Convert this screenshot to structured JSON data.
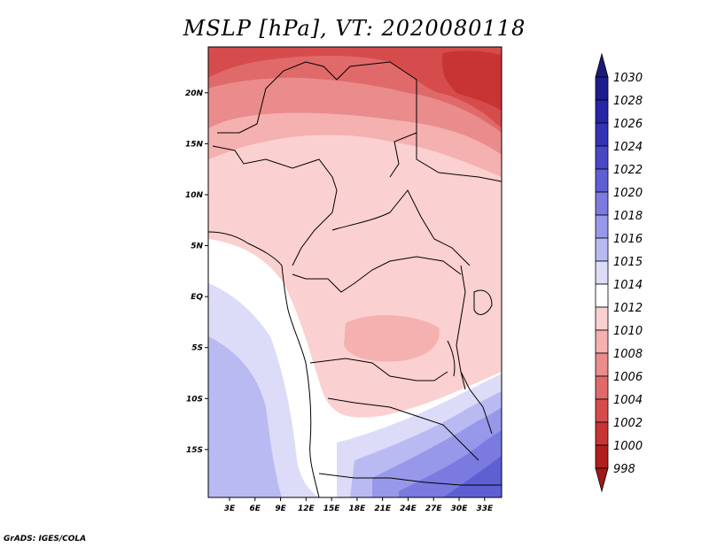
{
  "title": "MSLP [hPa], VT: 2020080118",
  "credit": "GrADS: IGES/COLA",
  "map": {
    "lat_labels": [
      "20N",
      "15N",
      "10N",
      "5N",
      "EQ",
      "5S",
      "10S",
      "15S"
    ],
    "lat_values": [
      20,
      15,
      10,
      5,
      0,
      -5,
      -10,
      -15
    ],
    "lon_labels": [
      "3E",
      "6E",
      "9E",
      "12E",
      "15E",
      "18E",
      "21E",
      "24E",
      "27E",
      "30E",
      "33E"
    ],
    "lon_values": [
      3,
      6,
      9,
      12,
      15,
      18,
      21,
      24,
      27,
      30,
      33
    ],
    "lon_range": [
      0.5,
      35
    ],
    "lat_range": [
      -19.7,
      24.5
    ]
  },
  "colorbar": {
    "labels": [
      "1030",
      "1028",
      "1026",
      "1024",
      "1022",
      "1020",
      "1018",
      "1016",
      "1015",
      "1014",
      "1012",
      "1010",
      "1008",
      "1006",
      "1004",
      "1002",
      "1000",
      "998"
    ],
    "colors": [
      "#1d1d8f",
      "#2626a6",
      "#3333b8",
      "#4848c6",
      "#5f5fd4",
      "#7a7ae0",
      "#9898ea",
      "#babaf2",
      "#dcdcf8",
      "#ffffff",
      "#fbd0d0",
      "#f5b0b0",
      "#ea8c8c",
      "#e06a6a",
      "#d64c4c",
      "#c83434",
      "#b01e1e"
    ],
    "top_color": "#1a1a7a",
    "bottom_color": "#a01818"
  }
}
